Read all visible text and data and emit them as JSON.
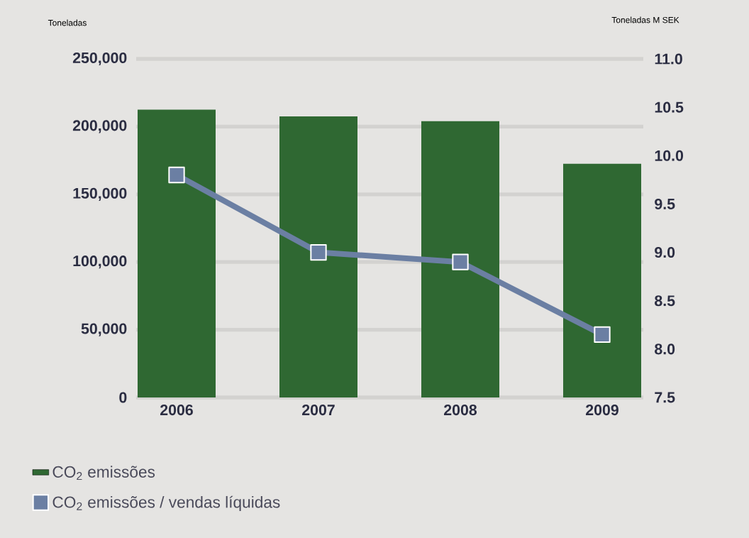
{
  "chart_data": {
    "type": "bar",
    "categories": [
      "2006",
      "2007",
      "2008",
      "2009"
    ],
    "series": [
      {
        "name": "CO$_{2}$ emissões",
        "color": "#2f6832",
        "values": [
          212500,
          207500,
          204000,
          172500
        ]
      },
      {
        "name": "CO$_{2}$ emissões / vendas líquidas",
        "type": "line",
        "axis": "y2",
        "color": "#6b7fa3",
        "marker": "square",
        "line_style": "solid",
        "values": [
          9.8,
          9.0,
          8.9,
          8.15
        ]
      }
    ],
    "ylabel": "Toneladas",
    "y2label": "Toneladas M SEK",
    "ylim": [
      0,
      250000
    ],
    "yticks": [
      0,
      {
        "value": 50000,
        "label": "50,000"
      },
      {
        "value": 100000,
        "label": "100,000"
      },
      {
        "value": 150000,
        "label": "150,000"
      },
      {
        "value": 200000,
        "label": "200,000"
      },
      {
        "value": 250000,
        "label": "250,000"
      }
    ],
    "y2lim": [
      7.5,
      11
    ],
    "y2ticks": [
      7.5,
      {
        "value": 8,
        "label": "8.0"
      },
      8.5,
      {
        "value": 9,
        "label": "9.0"
      },
      9.5,
      {
        "value": 10,
        "label": "10.0"
      },
      10.5,
      {
        "value": 11,
        "label": "11.0"
      }
    ],
    "grid": "y",
    "legend": "bottom"
  }
}
